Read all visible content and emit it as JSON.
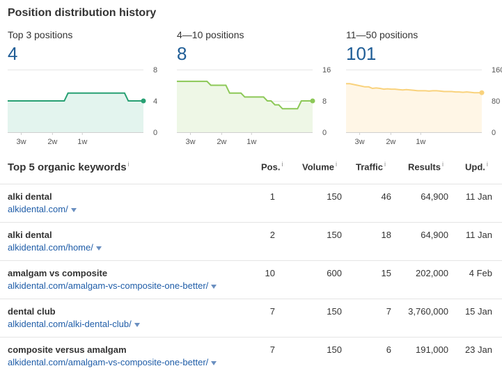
{
  "section_title": "Position distribution history",
  "charts": [
    {
      "label": "Top 3 positions",
      "count": "4",
      "y_ticks": [
        "8",
        "4",
        "0"
      ],
      "y_max": 8,
      "x_ticks": [
        "3w",
        "2w",
        "1w"
      ],
      "line_color": "#27a073",
      "fill_color": "#e3f4ee",
      "values": [
        4,
        4,
        4,
        4,
        4,
        4,
        4,
        4,
        4,
        4,
        4,
        4,
        4,
        4,
        4,
        4,
        5,
        5,
        5,
        5,
        5,
        5,
        5,
        5,
        5,
        5,
        5,
        5,
        5,
        5,
        5,
        5,
        4,
        4,
        4,
        4,
        4
      ]
    },
    {
      "label": "4—10 positions",
      "count": "8",
      "y_ticks": [
        "16",
        "8",
        "0"
      ],
      "y_max": 16,
      "x_ticks": [
        "3w",
        "2w",
        "1w"
      ],
      "line_color": "#8cc857",
      "fill_color": "#eef7e6",
      "values": [
        13,
        13,
        13,
        13,
        13,
        13,
        13,
        13,
        13,
        12,
        12,
        12,
        12,
        12,
        10,
        10,
        10,
        10,
        9,
        9,
        9,
        9,
        9,
        9,
        8,
        8,
        7,
        7,
        6,
        6,
        6,
        6,
        6,
        8,
        8,
        8,
        8
      ]
    },
    {
      "label": "11—50 positions",
      "count": "101",
      "y_ticks": [
        "160",
        "80",
        "0"
      ],
      "y_max": 160,
      "x_ticks": [
        "3w",
        "2w",
        "1w"
      ],
      "line_color": "#f9d27c",
      "fill_color": "#fff6e6",
      "values": [
        124,
        124,
        122,
        120,
        118,
        116,
        116,
        112,
        113,
        112,
        110,
        111,
        110,
        110,
        109,
        108,
        109,
        108,
        107,
        106,
        106,
        106,
        105,
        106,
        106,
        105,
        104,
        104,
        104,
        103,
        103,
        102,
        103,
        102,
        101,
        101,
        101
      ]
    }
  ],
  "keywords_title": "Top 5 organic keywords",
  "info_glyph": "i",
  "columns": {
    "pos": "Pos.",
    "volume": "Volume",
    "traffic": "Traffic",
    "results": "Results",
    "upd": "Upd."
  },
  "rows": [
    {
      "keyword": "alki dental",
      "url": "alkidental.com/",
      "pos": "1",
      "volume": "150",
      "traffic": "46",
      "results": "64,900",
      "upd": "11 Jan"
    },
    {
      "keyword": "alki dental",
      "url": "alkidental.com/home/",
      "pos": "2",
      "volume": "150",
      "traffic": "18",
      "results": "64,900",
      "upd": "11 Jan"
    },
    {
      "keyword": "amalgam vs composite",
      "url": "alkidental.com/amalgam-vs-composite-one-better/",
      "pos": "10",
      "volume": "600",
      "traffic": "15",
      "results": "202,000",
      "upd": "4 Feb"
    },
    {
      "keyword": "dental club",
      "url": "alkidental.com/alki-dental-club/",
      "pos": "7",
      "volume": "150",
      "traffic": "7",
      "results": "3,760,000",
      "upd": "15 Jan"
    },
    {
      "keyword": "composite versus amalgam",
      "url": "alkidental.com/amalgam-vs-composite-one-better/",
      "pos": "7",
      "volume": "150",
      "traffic": "6",
      "results": "191,000",
      "upd": "23 Jan"
    }
  ]
}
